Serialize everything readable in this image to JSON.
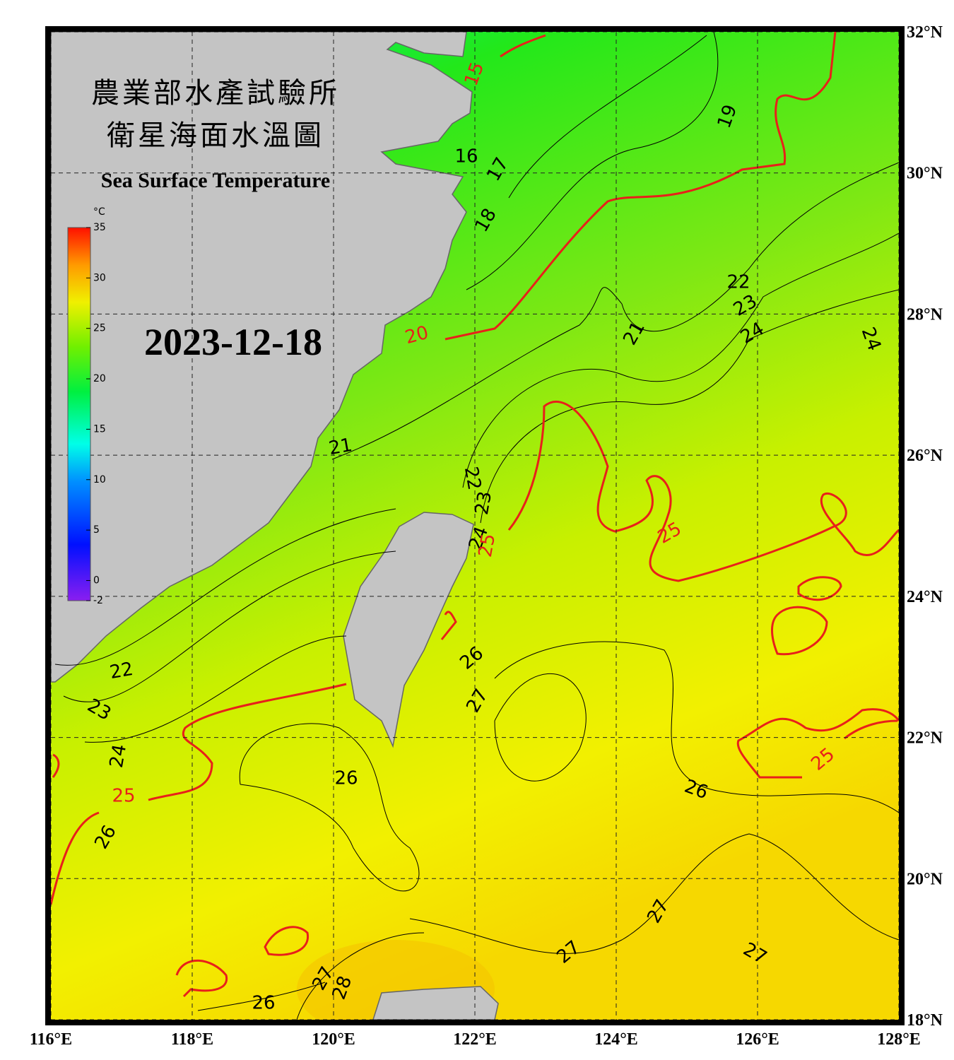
{
  "title_zh": [
    "農業部水產試驗所",
    "衛星海面水溫圖"
  ],
  "title_en": "Sea Surface Temperature",
  "date": "2023-12-18",
  "colorbar": {
    "unit": "°C",
    "range": [
      -2,
      35
    ],
    "ticks": [
      35,
      30,
      25,
      20,
      15,
      10,
      5,
      0,
      -2
    ]
  },
  "lon_range": [
    116,
    128
  ],
  "lat_range": [
    18,
    32
  ],
  "lon_ticks": [
    {
      "value": 116,
      "label": "116°E"
    },
    {
      "value": 118,
      "label": "118°E"
    },
    {
      "value": 120,
      "label": "120°E"
    },
    {
      "value": 122,
      "label": "122°E"
    },
    {
      "value": 124,
      "label": "124°E"
    },
    {
      "value": 126,
      "label": "126°E"
    },
    {
      "value": 128,
      "label": "128°E"
    }
  ],
  "lat_ticks": [
    {
      "value": 32,
      "label": "32°N"
    },
    {
      "value": 30,
      "label": "30°N"
    },
    {
      "value": 28,
      "label": "28°N"
    },
    {
      "value": 26,
      "label": "26°N"
    },
    {
      "value": 24,
      "label": "24°N"
    },
    {
      "value": 22,
      "label": "22°N"
    },
    {
      "value": 20,
      "label": "20°N"
    },
    {
      "value": 18,
      "label": "18°N"
    }
  ],
  "contour_labels": [
    15,
    16,
    17,
    18,
    19,
    20,
    21,
    22,
    23,
    24,
    24,
    21,
    22,
    23,
    24,
    25,
    25,
    26,
    27,
    22,
    23,
    24,
    25,
    26,
    26,
    26,
    25,
    27,
    27,
    27,
    27,
    28,
    26
  ]
}
